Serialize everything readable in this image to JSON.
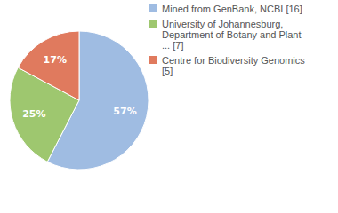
{
  "chart_data": {
    "type": "pie",
    "categories": [
      "Mined from GenBank, NCBI [16]",
      "University of Johannesburg, Department of Botany and Plant ... [7]",
      "Centre for Biodiversity Genomics [5]"
    ],
    "values": [
      57,
      25,
      17
    ],
    "value_labels": [
      "57%",
      "25%",
      "17%"
    ],
    "colors": [
      "#9fbce2",
      "#9ec76f",
      "#e07a5e"
    ],
    "data_labels": true,
    "legend": "right"
  }
}
